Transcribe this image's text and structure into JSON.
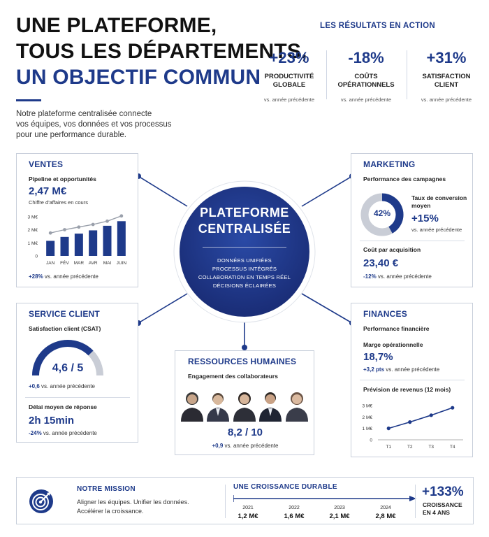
{
  "header": {
    "line1": "UNE PLATEFORME,",
    "line2": "TOUS LES DÉPARTEMENTS,",
    "line3": "UN OBJECTIF COMMUN",
    "intro": [
      "Notre plateforme centralisée connecte",
      "vos équipes, vos données et vos processus",
      "pour une performance durable."
    ]
  },
  "results": {
    "title": "LES RÉSULTATS EN ACTION",
    "items": [
      {
        "value": "+23%",
        "label1": "PRODUCTIVITÉ",
        "label2": "GLOBALE",
        "sub": "vs. année précédente"
      },
      {
        "value": "-18%",
        "label1": "COÛTS",
        "label2": "OPÉRATIONNELS",
        "sub": "vs. année précédente"
      },
      {
        "value": "+31%",
        "label1": "SATISFACTION",
        "label2": "CLIENT",
        "sub": "vs. année précédente"
      }
    ]
  },
  "center": {
    "title1": "PLATEFORME",
    "title2": "CENTRALISÉE",
    "items": [
      "DONNÉES UNIFIÉES",
      "PROCESSUS INTÉGRÉS",
      "COLLABORATION EN TEMPS RÉEL",
      "DÉCISIONS ÉCLAIRÉES"
    ]
  },
  "ventes": {
    "title": "VENTES",
    "subtitle": "Pipeline et opportunités",
    "value": "2,47 M€",
    "caption": "Chiffre d'affaires en cours",
    "delta": "+28%",
    "delta_text": "vs. année précédente"
  },
  "marketing": {
    "title": "MARKETING",
    "subtitle": "Performance des campagnes",
    "donut_label": "42%",
    "donut_value": 0.42,
    "conv_label1": "Taux de conversion",
    "conv_label2": "moyen",
    "conv_delta": "+15%",
    "conv_sub": "vs. année précédente",
    "cpa_label": "Coût par acquisition",
    "cpa_value": "23,40 €",
    "cpa_delta": "-12%",
    "cpa_sub": "vs. année précédente"
  },
  "service": {
    "title": "SERVICE CLIENT",
    "subtitle": "Satisfaction client (CSAT)",
    "score": "4,6 / 5",
    "gauge_value": 0.92,
    "delta": "+0,6",
    "delta_text": "vs. année précédente",
    "delay_label": "Délai moyen de réponse",
    "delay_value": "2h 15min",
    "delay_delta": "-24%",
    "delay_text": "vs. année précédente"
  },
  "rh": {
    "title": "RESSOURCES HUMAINES",
    "subtitle": "Engagement des collaborateurs",
    "score": "8,2 / 10",
    "delta": "+0,9",
    "delta_text": "vs. année précédente"
  },
  "finances": {
    "title": "FINANCES",
    "subtitle": "Performance financière",
    "margin_label": "Marge opérationnelle",
    "margin_value": "18,7%",
    "margin_delta": "+3,2 pts",
    "margin_text": "vs. année précédente",
    "forecast_label": "Prévision de revenus (12 mois)"
  },
  "chart_data": [
    {
      "type": "bar",
      "categories": [
        "JAN",
        "FÉV",
        "MAR",
        "AVR",
        "MAI",
        "JUIN"
      ],
      "values": [
        1.15,
        1.45,
        1.7,
        1.95,
        2.3,
        2.65
      ],
      "overlay_line": [
        1.75,
        2.0,
        2.2,
        2.4,
        2.65,
        3.05
      ],
      "yticks": [
        "0",
        "1 M€",
        "2 M€",
        "3 M€"
      ],
      "ylim": [
        0,
        3.2
      ]
    },
    {
      "type": "line",
      "categories": [
        "T1",
        "T2",
        "T3",
        "T4"
      ],
      "values": [
        1.0,
        1.55,
        2.15,
        2.8
      ],
      "yticks": [
        "0",
        "1 M€",
        "2 M€",
        "3 M€"
      ],
      "ylim": [
        0,
        3.3
      ]
    }
  ],
  "mission": {
    "title": "NOTRE MISSION",
    "line1": "Aligner les équipes. Unifier les données.",
    "line2": "Accélérer la croissance."
  },
  "growth": {
    "title": "UNE CROISSANCE DURABLE",
    "years": [
      "2021",
      "2022",
      "2023",
      "2024"
    ],
    "values": [
      "1,2 M€",
      "1,6 M€",
      "2,1 M€",
      "2,8 M€"
    ],
    "big": "+133%",
    "big_l1": "CROISSANCE",
    "big_l2": "EN 4 ANS"
  },
  "colors": {
    "accent": "#1e3a8a",
    "grey": "#c9cdd6",
    "border": "#c8cfdb"
  }
}
